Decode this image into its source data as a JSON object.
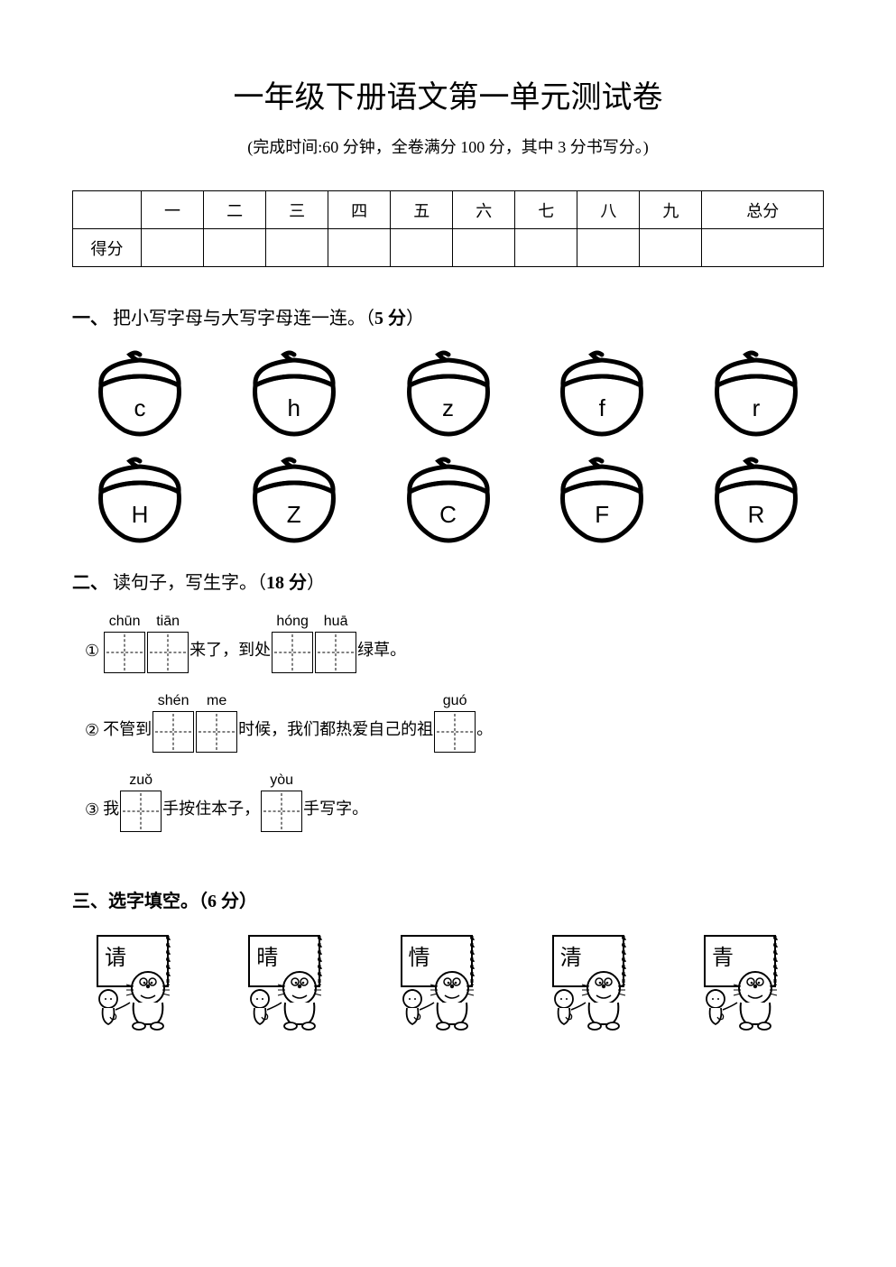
{
  "colors": {
    "text": "#000000",
    "bg": "#ffffff",
    "border": "#000000"
  },
  "title": "一年级下册语文第一单元测试卷",
  "subtitle": "(完成时间:60 分钟，全卷满分 100 分，其中 3 分书写分。)",
  "score_table": {
    "row1": [
      "",
      "一",
      "二",
      "三",
      "四",
      "五",
      "六",
      "七",
      "八",
      "九",
      "总分"
    ],
    "row2_label": "得分"
  },
  "section1": {
    "num": "一、",
    "text": "把小写字母与大写字母连一连。（",
    "points": "5 分",
    "tail": "）",
    "top_letters": [
      "c",
      "h",
      "z",
      "f",
      "r"
    ],
    "bottom_letters": [
      "H",
      "Z",
      "C",
      "F",
      "R"
    ]
  },
  "section2": {
    "num": "二、",
    "text": "读句子，写生字。（",
    "points": "18 分",
    "tail": "）",
    "lines": [
      {
        "num": "①",
        "segments": [
          {
            "type": "boxes",
            "pinyin": [
              "chūn",
              "tiān"
            ]
          },
          {
            "type": "text",
            "value": "来了，到处"
          },
          {
            "type": "boxes",
            "pinyin": [
              "hóng",
              "huā"
            ]
          },
          {
            "type": "text",
            "value": "绿草。"
          }
        ]
      },
      {
        "num": "②",
        "segments": [
          {
            "type": "text",
            "value": "不管到"
          },
          {
            "type": "boxes",
            "pinyin": [
              "shén",
              "me"
            ]
          },
          {
            "type": "text",
            "value": "时候，我们都热爱自己的祖"
          },
          {
            "type": "boxes",
            "pinyin": [
              "guó"
            ]
          },
          {
            "type": "text",
            "value": "。"
          }
        ]
      },
      {
        "num": "③",
        "segments": [
          {
            "type": "text",
            "value": "我"
          },
          {
            "type": "boxes",
            "pinyin": [
              "zuǒ"
            ]
          },
          {
            "type": "text",
            "value": "手按住本子，"
          },
          {
            "type": "boxes",
            "pinyin": [
              "yòu"
            ]
          },
          {
            "type": "text",
            "value": "手写字。"
          }
        ]
      }
    ]
  },
  "section3": {
    "num": "三、",
    "text": "选字填空。（",
    "points": "6 分",
    "tail": "）",
    "chars": [
      "请",
      "晴",
      "情",
      "清",
      "青"
    ]
  }
}
